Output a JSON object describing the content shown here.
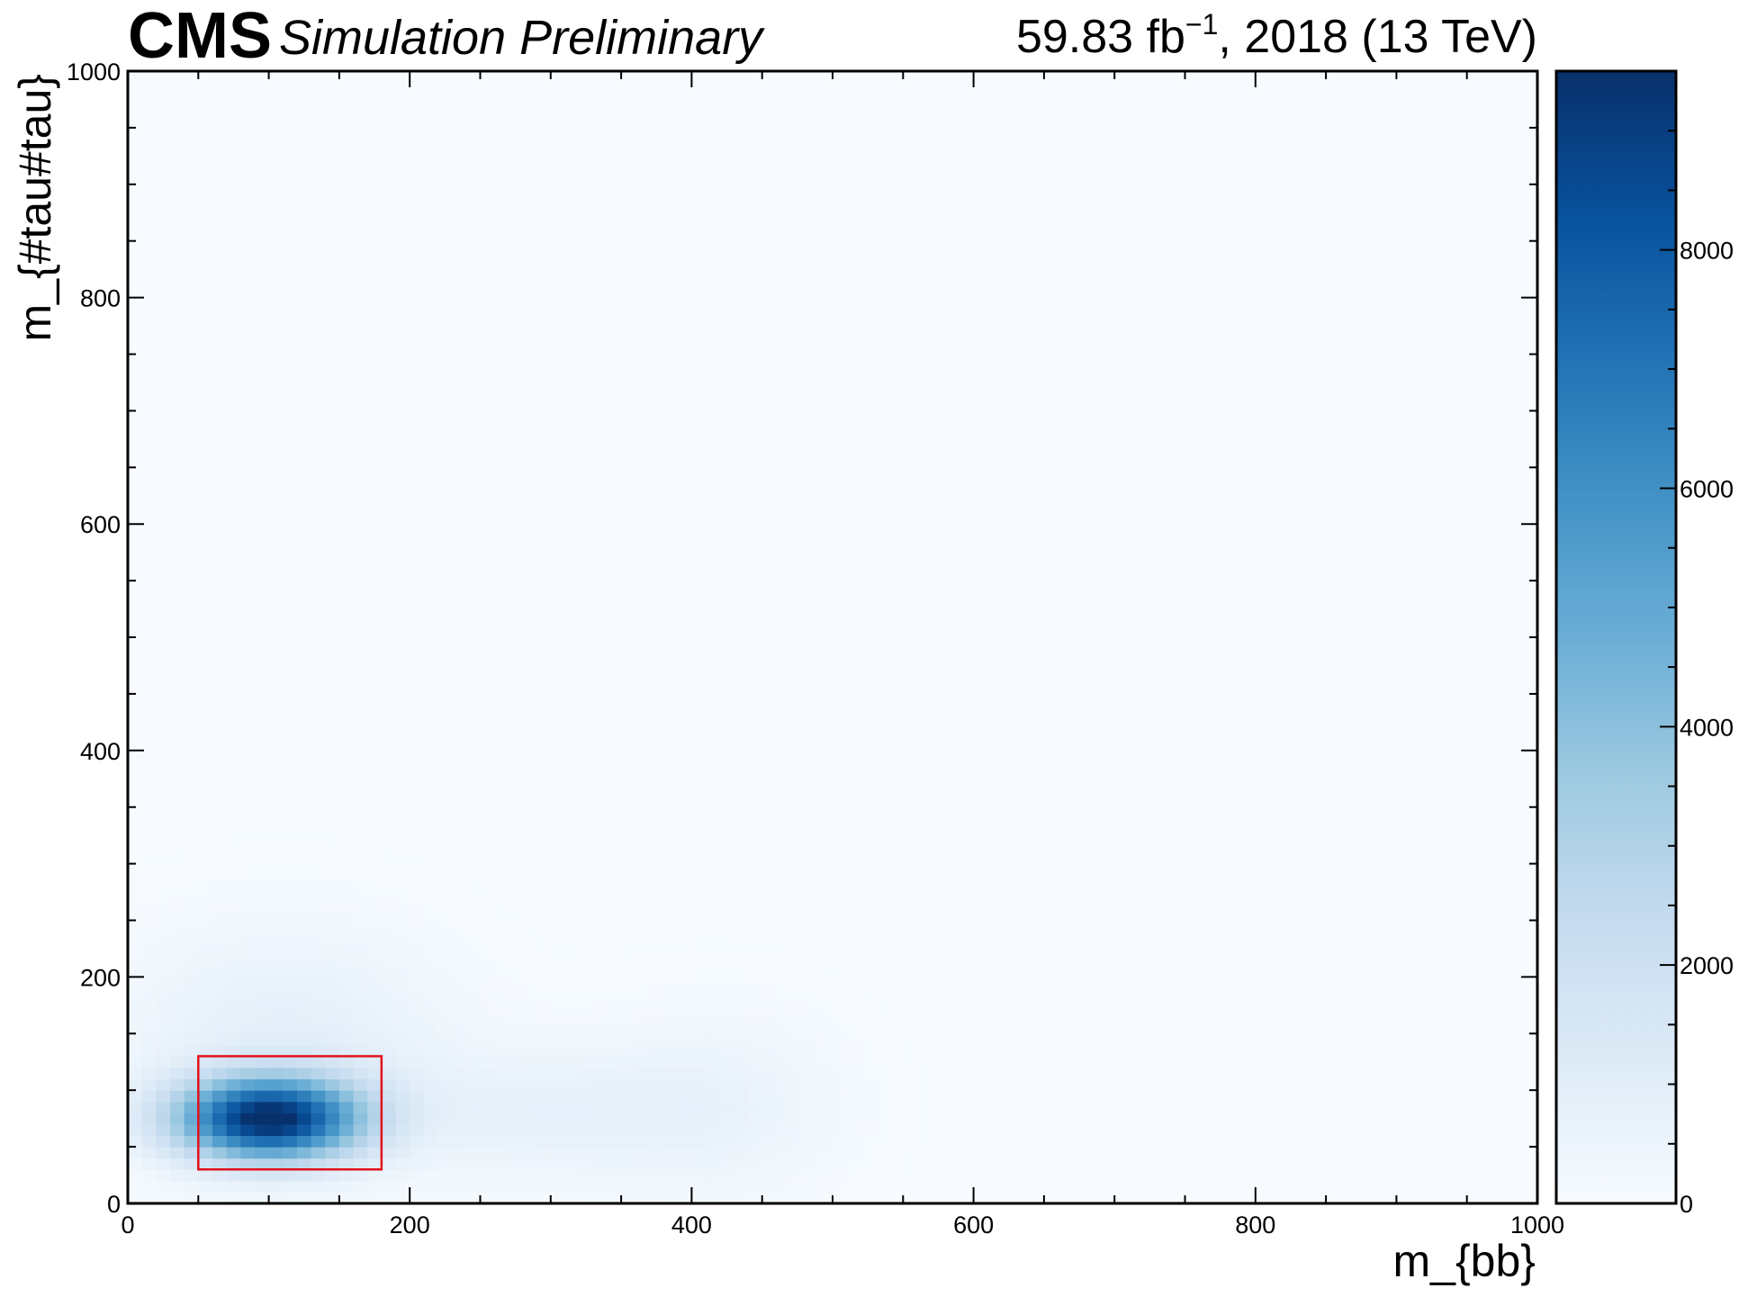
{
  "header": {
    "experiment": "CMS",
    "status": "Simulation Preliminary",
    "lumi_prefix": "59.83 fb",
    "lumi_exponent": "−1",
    "lumi_suffix": ", 2018 (13 TeV)"
  },
  "chart_data": {
    "type": "heatmap",
    "title": "",
    "xlabel": "m_{bb}",
    "ylabel": "m_{#tau#tau}",
    "xlim": [
      0,
      1000
    ],
    "ylim": [
      0,
      1000
    ],
    "x_ticks": [
      "0",
      "200",
      "400",
      "600",
      "800",
      "1000"
    ],
    "y_ticks": [
      "0",
      "200",
      "400",
      "600",
      "800",
      "1000"
    ],
    "colorbar": {
      "min": 0,
      "max": 9500,
      "ticks": [
        "0",
        "2000",
        "4000",
        "6000",
        "8000"
      ],
      "colormap": "Blues",
      "colors": [
        "#f7fbff",
        "#deebf7",
        "#c6dbef",
        "#9ecae1",
        "#6baed6",
        "#4292c6",
        "#2171b5",
        "#08519c",
        "#08306b"
      ]
    },
    "description_components": [
      {
        "kind": "peak",
        "x_center": 100,
        "y_center": 75,
        "x_sigma": 45,
        "y_sigma": 25,
        "amplitude": 9300
      },
      {
        "kind": "tail",
        "x_center": 110,
        "y_center": 140,
        "x_sigma": 80,
        "y_sigma": 70,
        "amplitude": 900
      },
      {
        "kind": "tail",
        "x_center": 300,
        "y_center": 80,
        "x_sigma": 90,
        "y_sigma": 40,
        "amplitude": 700
      },
      {
        "kind": "tail",
        "x_center": 420,
        "y_center": 90,
        "x_sigma": 60,
        "y_sigma": 60,
        "amplitude": 450
      }
    ],
    "signal_region": {
      "x_range": [
        50,
        180
      ],
      "y_range": [
        30,
        130
      ],
      "color": "#e3111b"
    }
  }
}
